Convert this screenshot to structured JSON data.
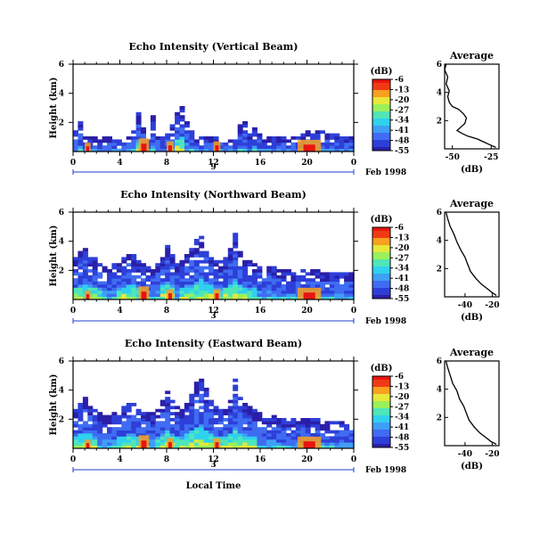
{
  "colors": {
    "scale": [
      "#2a1fa8",
      "#2e3fd8",
      "#3f6cf2",
      "#3f9ff5",
      "#2fd1ee",
      "#4fe6b8",
      "#9af05a",
      "#e8e83a",
      "#f8a020",
      "#f03a16",
      "#e81410"
    ],
    "axis": "#000000",
    "date_line": "#1f3fd0"
  },
  "chart_data": [
    {
      "type": "heatmap",
      "title": "Echo Intensity (Vertical Beam)",
      "ylabel": "Height (km)",
      "x_ticks": [
        "0",
        "4",
        "8",
        "12",
        "16",
        "20",
        "0"
      ],
      "y_ticks": [
        "2",
        "4",
        "6"
      ],
      "xlim": [
        0,
        24
      ],
      "ylim": [
        0,
        6
      ],
      "date_tick": "9",
      "date_label": "Feb 1998",
      "colorbar": {
        "unit": "(dB)",
        "ticks": [
          "-6",
          "-13",
          "-20",
          "-27",
          "-34",
          "-41",
          "-48",
          "-55"
        ],
        "range": [
          -55,
          -6
        ]
      },
      "echo_tops_km": [
        1.3,
        2.0,
        1.0,
        1.0,
        1.0,
        1.0,
        1.0,
        1.0,
        0.8,
        0.7,
        0.8,
        1.0,
        1.4,
        2.6,
        1.6,
        1.3,
        2.4,
        1.2,
        1.0,
        1.2,
        1.8,
        2.8,
        3.0,
        2.2,
        1.4,
        1.0,
        1.0,
        1.0,
        1.0,
        0.9,
        0.9,
        0.9,
        0.9,
        1.0,
        1.8,
        1.9,
        1.3,
        1.6,
        1.1,
        1.0,
        1.0,
        1.0,
        1.0,
        1.0,
        1.0,
        1.0,
        1.0,
        1.1,
        1.3,
        1.4,
        1.3,
        1.3,
        1.2,
        1.2,
        1.1,
        1.0,
        0.9,
        1.0
      ],
      "average_profile": {
        "title": "Average",
        "xlabel": "(dB)",
        "x_ticks": [
          "-50",
          "-25"
        ],
        "xlim": [
          -55,
          -20
        ],
        "y_ticks": [
          "2",
          "4",
          "6"
        ],
        "ylim": [
          0,
          6
        ],
        "points": [
          [
            -22,
            0.1
          ],
          [
            -26,
            0.3
          ],
          [
            -30,
            0.5
          ],
          [
            -34,
            0.7
          ],
          [
            -40,
            0.9
          ],
          [
            -44,
            1.1
          ],
          [
            -47,
            1.3
          ],
          [
            -45,
            1.5
          ],
          [
            -42,
            1.8
          ],
          [
            -41,
            2.2
          ],
          [
            -43,
            2.5
          ],
          [
            -46,
            2.8
          ],
          [
            -50,
            3.0
          ],
          [
            -52,
            3.3
          ],
          [
            -53,
            3.7
          ],
          [
            -52,
            4.1
          ],
          [
            -54,
            4.6
          ],
          [
            -53,
            5.1
          ],
          [
            -55,
            5.6
          ],
          [
            -54,
            6.0
          ]
        ]
      }
    },
    {
      "type": "heatmap",
      "title": "Echo Intensity (Northward Beam)",
      "ylabel": "Height (km)",
      "x_ticks": [
        "0",
        "4",
        "8",
        "12",
        "16",
        "20",
        "0"
      ],
      "y_ticks": [
        "2",
        "4",
        "6"
      ],
      "xlim": [
        0,
        24
      ],
      "ylim": [
        0,
        6
      ],
      "date_tick": "3",
      "date_label": "Feb 1998",
      "colorbar": {
        "unit": "(dB)",
        "ticks": [
          "-6",
          "-13",
          "-20",
          "-27",
          "-34",
          "-41",
          "-48",
          "-55"
        ],
        "range": [
          -55,
          -6
        ]
      },
      "echo_tops_km": [
        2.9,
        3.3,
        3.4,
        3.0,
        2.8,
        2.6,
        2.4,
        2.2,
        2.4,
        2.6,
        2.9,
        3.3,
        3.0,
        2.6,
        2.3,
        2.2,
        2.0,
        2.4,
        3.0,
        3.6,
        3.0,
        2.5,
        2.6,
        3.0,
        3.4,
        4.0,
        4.3,
        3.7,
        3.0,
        2.7,
        2.6,
        2.8,
        3.4,
        4.4,
        3.2,
        2.9,
        2.7,
        2.6,
        2.4,
        2.3,
        2.2,
        2.1,
        2.0,
        2.0,
        1.9,
        1.8,
        1.8,
        1.9,
        2.0,
        2.0,
        1.9,
        1.8,
        1.8,
        1.7,
        1.7,
        1.8,
        1.7,
        1.7
      ],
      "average_profile": {
        "title": "Average",
        "xlabel": "(dB)",
        "x_ticks": [
          "-40",
          "-20"
        ],
        "xlim": [
          -55,
          -15
        ],
        "y_ticks": [
          "2",
          "4",
          "6"
        ],
        "ylim": [
          0,
          6
        ],
        "points": [
          [
            -17,
            0.1
          ],
          [
            -20,
            0.3
          ],
          [
            -24,
            0.6
          ],
          [
            -28,
            0.9
          ],
          [
            -32,
            1.3
          ],
          [
            -36,
            1.8
          ],
          [
            -38,
            2.3
          ],
          [
            -40,
            2.8
          ],
          [
            -43,
            3.3
          ],
          [
            -46,
            3.9
          ],
          [
            -48,
            4.4
          ],
          [
            -51,
            5.0
          ],
          [
            -53,
            5.6
          ],
          [
            -54,
            6.0
          ]
        ]
      }
    },
    {
      "type": "heatmap",
      "title": "Echo Intensity (Eastward Beam)",
      "ylabel": "Height (km)",
      "xlabel": "Local Time",
      "x_ticks": [
        "0",
        "4",
        "8",
        "12",
        "16",
        "20",
        "0"
      ],
      "y_ticks": [
        "2",
        "4",
        "6"
      ],
      "xlim": [
        0,
        24
      ],
      "ylim": [
        0,
        6
      ],
      "date_tick": "3",
      "date_label": "Feb 1998",
      "colorbar": {
        "unit": "(dB)",
        "ticks": [
          "-6",
          "-13",
          "-20",
          "-27",
          "-34",
          "-41",
          "-48",
          "-55"
        ],
        "range": [
          -55,
          -6
        ]
      },
      "echo_tops_km": [
        2.6,
        3.3,
        3.4,
        3.0,
        2.7,
        2.4,
        2.2,
        2.1,
        2.3,
        2.6,
        2.9,
        3.1,
        3.0,
        2.7,
        2.5,
        2.4,
        2.3,
        2.6,
        3.2,
        3.9,
        3.3,
        2.8,
        2.7,
        3.1,
        3.7,
        4.4,
        4.8,
        4.0,
        3.2,
        2.8,
        2.6,
        2.7,
        3.3,
        4.6,
        3.5,
        3.0,
        2.8,
        2.6,
        2.4,
        2.3,
        2.2,
        2.1,
        2.0,
        2.0,
        1.9,
        1.9,
        1.8,
        1.9,
        2.0,
        2.0,
        1.9,
        1.8,
        1.8,
        1.7,
        1.7,
        1.7,
        1.6,
        1.6
      ],
      "average_profile": {
        "title": "Average",
        "xlabel": "(dB)",
        "x_ticks": [
          "-40",
          "-20"
        ],
        "xlim": [
          -55,
          -15
        ],
        "y_ticks": [
          "2",
          "4",
          "6"
        ],
        "ylim": [
          0,
          6
        ],
        "points": [
          [
            -17,
            0.1
          ],
          [
            -21,
            0.3
          ],
          [
            -25,
            0.6
          ],
          [
            -29,
            0.9
          ],
          [
            -33,
            1.3
          ],
          [
            -37,
            1.8
          ],
          [
            -39,
            2.3
          ],
          [
            -41,
            2.8
          ],
          [
            -44,
            3.3
          ],
          [
            -46,
            3.9
          ],
          [
            -49,
            4.4
          ],
          [
            -51,
            5.0
          ],
          [
            -53,
            5.6
          ],
          [
            -54,
            6.0
          ]
        ]
      }
    }
  ]
}
